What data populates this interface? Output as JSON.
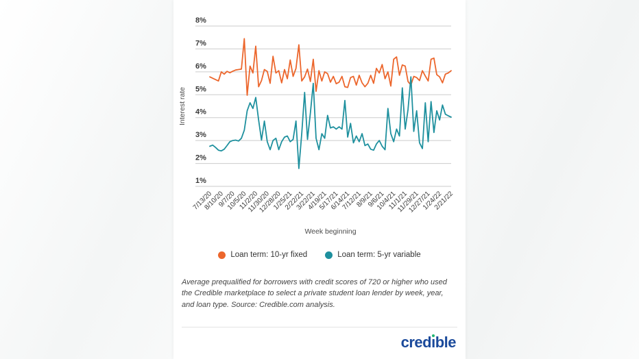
{
  "chart_data": {
    "type": "line",
    "title": "",
    "ylabel": "Interest rate",
    "xlabel": "Week beginning",
    "ylim": [
      1,
      8
    ],
    "grid": "horizontal",
    "gridline_color": "#cbcbcb",
    "legend_position": "bottom",
    "ytick_values": [
      8,
      7,
      6,
      5,
      4,
      3,
      2,
      1
    ],
    "ytick_labels": [
      "8%",
      "7%",
      "6%",
      "5%",
      "4%",
      "3%",
      "2%",
      "1%"
    ],
    "x_tick_labels": [
      "7/13/20",
      "8/10/20",
      "9/7/20",
      "10/5/20",
      "11/2/20",
      "11/30/20",
      "12/28/20",
      "1/25/21",
      "2/22/21",
      "3/22/21",
      "4/19/21",
      "5/17/21",
      "6/14/21",
      "7/12/21",
      "8/9/21",
      "9/6/21",
      "10/4/21",
      "11/1/21",
      "11/29/21",
      "12/27/21",
      "1/24/22",
      "2/21/22"
    ],
    "tick_every": 4,
    "n_points": 85,
    "series": [
      {
        "name": "Loan term: 10-yr fixed",
        "color": "#ec662c",
        "values": [
          5.78,
          5.72,
          5.66,
          5.6,
          6.0,
          5.9,
          6.02,
          5.96,
          6.03,
          6.08,
          6.1,
          6.12,
          7.45,
          4.98,
          6.25,
          5.95,
          7.12,
          5.35,
          5.62,
          6.1,
          6.02,
          5.5,
          6.68,
          5.95,
          6.05,
          5.52,
          6.1,
          5.7,
          6.52,
          5.8,
          6.15,
          7.18,
          5.6,
          5.78,
          6.12,
          5.58,
          6.55,
          5.15,
          6.05,
          5.6,
          6.0,
          5.92,
          5.55,
          5.8,
          5.48,
          5.55,
          5.8,
          5.35,
          5.32,
          5.75,
          5.8,
          5.42,
          5.85,
          5.52,
          5.35,
          5.5,
          5.85,
          5.5,
          6.15,
          5.95,
          6.32,
          5.7,
          6.0,
          5.38,
          6.55,
          6.65,
          5.85,
          6.3,
          6.25,
          5.58,
          5.42,
          5.8,
          5.75,
          5.62,
          6.05,
          5.82,
          5.6,
          6.55,
          6.6,
          5.88,
          5.78,
          5.52,
          5.9,
          5.95,
          6.05
        ]
      },
      {
        "name": "Loan term: 5-yr variable",
        "color": "#1e909e",
        "values": [
          2.75,
          2.8,
          2.7,
          2.58,
          2.55,
          2.62,
          2.78,
          2.95,
          3.0,
          3.02,
          2.98,
          3.1,
          3.45,
          4.3,
          4.65,
          4.4,
          4.88,
          3.9,
          3.02,
          3.85,
          2.95,
          2.6,
          3.0,
          3.1,
          2.6,
          2.95,
          3.15,
          3.2,
          2.95,
          3.05,
          3.85,
          1.78,
          3.3,
          5.1,
          3.05,
          4.2,
          5.5,
          3.1,
          2.6,
          3.3,
          3.1,
          4.1,
          3.55,
          3.6,
          3.5,
          3.6,
          3.5,
          4.75,
          3.15,
          3.75,
          2.9,
          3.2,
          2.95,
          3.3,
          2.78,
          2.85,
          2.62,
          2.58,
          2.85,
          3.0,
          2.75,
          2.6,
          4.4,
          3.3,
          2.95,
          3.5,
          3.2,
          5.3,
          3.5,
          4.35,
          5.78,
          3.4,
          4.3,
          2.9,
          2.65,
          4.65,
          2.95,
          4.7,
          3.35,
          4.3,
          3.9,
          4.55,
          4.15,
          4.08,
          4.02
        ]
      }
    ]
  },
  "footnote": {
    "text": "Average prequalified for borrowers with credit scores of 720 or higher who used the Credible marketplace to select a private student loan lender by week, year, and loan type. Source: Credible.com analysis."
  },
  "logo": {
    "part1": "cred",
    "part2": "ı",
    "part3": "ble",
    "brand_color": "#1b4a9b",
    "dot_color": "#21b573"
  }
}
